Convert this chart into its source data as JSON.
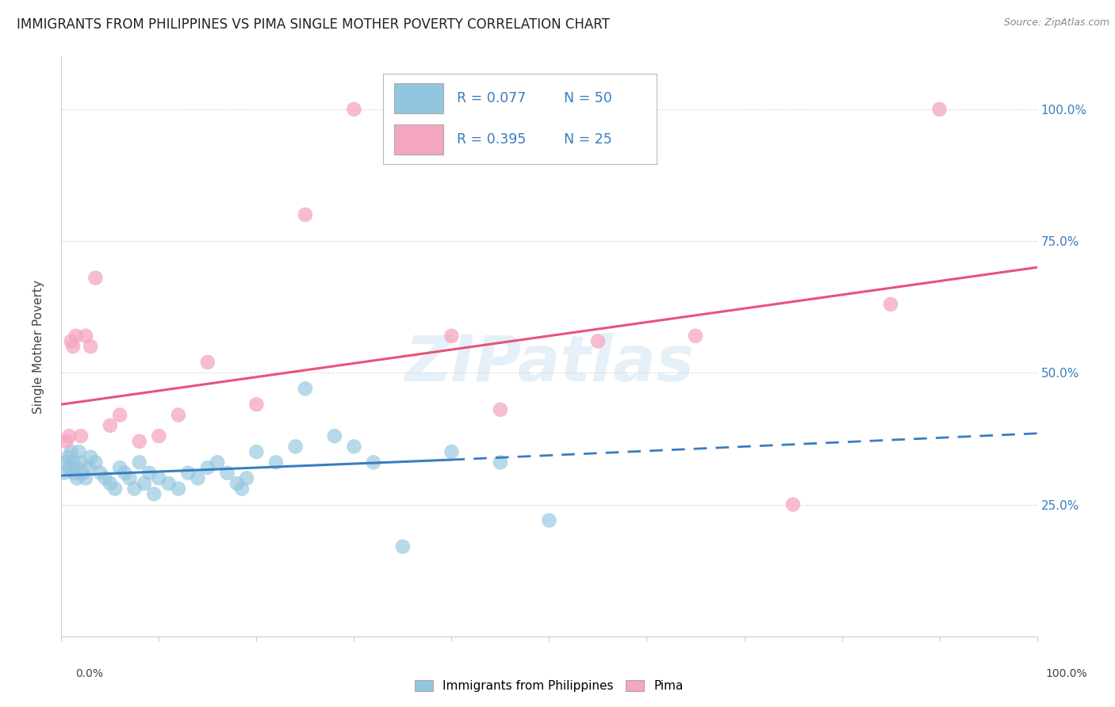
{
  "title": "IMMIGRANTS FROM PHILIPPINES VS PIMA SINGLE MOTHER POVERTY CORRELATION CHART",
  "source": "Source: ZipAtlas.com",
  "ylabel": "Single Mother Poverty",
  "legend_blue_r": "0.077",
  "legend_blue_n": "50",
  "legend_pink_r": "0.395",
  "legend_pink_n": "25",
  "legend_label_blue": "Immigrants from Philippines",
  "legend_label_pink": "Pima",
  "blue_color": "#92c5de",
  "pink_color": "#f4a6c0",
  "blue_line_color": "#3a7dbf",
  "pink_line_color": "#e8537a",
  "blue_points": [
    [
      0.3,
      31
    ],
    [
      0.5,
      33
    ],
    [
      0.7,
      34
    ],
    [
      0.8,
      32
    ],
    [
      1.0,
      35
    ],
    [
      1.2,
      33
    ],
    [
      1.3,
      31
    ],
    [
      1.5,
      32
    ],
    [
      1.6,
      30
    ],
    [
      1.8,
      35
    ],
    [
      2.0,
      33
    ],
    [
      2.2,
      31
    ],
    [
      2.5,
      30
    ],
    [
      2.8,
      32
    ],
    [
      3.0,
      34
    ],
    [
      3.5,
      33
    ],
    [
      4.0,
      31
    ],
    [
      4.5,
      30
    ],
    [
      5.0,
      29
    ],
    [
      5.5,
      28
    ],
    [
      6.0,
      32
    ],
    [
      6.5,
      31
    ],
    [
      7.0,
      30
    ],
    [
      7.5,
      28
    ],
    [
      8.0,
      33
    ],
    [
      8.5,
      29
    ],
    [
      9.0,
      31
    ],
    [
      9.5,
      27
    ],
    [
      10.0,
      30
    ],
    [
      11.0,
      29
    ],
    [
      12.0,
      28
    ],
    [
      13.0,
      31
    ],
    [
      14.0,
      30
    ],
    [
      15.0,
      32
    ],
    [
      16.0,
      33
    ],
    [
      17.0,
      31
    ],
    [
      18.0,
      29
    ],
    [
      18.5,
      28
    ],
    [
      19.0,
      30
    ],
    [
      20.0,
      35
    ],
    [
      22.0,
      33
    ],
    [
      24.0,
      36
    ],
    [
      25.0,
      47
    ],
    [
      28.0,
      38
    ],
    [
      30.0,
      36
    ],
    [
      32.0,
      33
    ],
    [
      35.0,
      17
    ],
    [
      40.0,
      35
    ],
    [
      45.0,
      33
    ],
    [
      50.0,
      22
    ]
  ],
  "pink_points": [
    [
      0.5,
      37
    ],
    [
      0.8,
      38
    ],
    [
      1.0,
      56
    ],
    [
      1.2,
      55
    ],
    [
      1.5,
      57
    ],
    [
      2.0,
      38
    ],
    [
      2.5,
      57
    ],
    [
      3.0,
      55
    ],
    [
      3.5,
      68
    ],
    [
      5.0,
      40
    ],
    [
      6.0,
      42
    ],
    [
      8.0,
      37
    ],
    [
      10.0,
      38
    ],
    [
      12.0,
      42
    ],
    [
      15.0,
      52
    ],
    [
      20.0,
      44
    ],
    [
      25.0,
      80
    ],
    [
      30.0,
      100
    ],
    [
      40.0,
      57
    ],
    [
      45.0,
      43
    ],
    [
      55.0,
      56
    ],
    [
      65.0,
      57
    ],
    [
      75.0,
      25
    ],
    [
      85.0,
      63
    ],
    [
      90.0,
      100
    ]
  ],
  "xlim": [
    0,
    100
  ],
  "ylim": [
    0,
    110
  ],
  "yticks": [
    0,
    25,
    50,
    75,
    100
  ],
  "ytick_labels": [
    "",
    "25.0%",
    "50.0%",
    "75.0%",
    "100.0%"
  ],
  "blue_solid_line": {
    "x0": 0,
    "x1": 40,
    "y0": 30.5,
    "y1": 33.5
  },
  "blue_dashed_line": {
    "x0": 40,
    "x1": 100,
    "y0": 33.5,
    "y1": 38.5
  },
  "pink_solid_line": {
    "x0": 0,
    "x1": 100,
    "y0": 44,
    "y1": 70
  },
  "watermark_text": "ZIPatlas",
  "background_color": "#ffffff",
  "grid_color": "#cccccc",
  "title_fontsize": 12,
  "axis_label_fontsize": 11,
  "tick_fontsize": 10
}
